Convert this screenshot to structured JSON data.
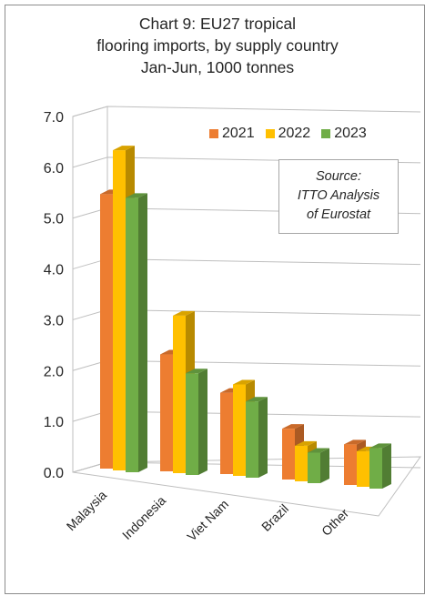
{
  "chart_data": {
    "type": "bar",
    "title_lines": [
      "Chart 9: EU27 tropical",
      "flooring imports, by supply country",
      "Jan-Jun, 1000 tonnes"
    ],
    "categories": [
      "Malaysia",
      "Indonesia",
      "Viet Nam",
      "Brazil",
      "Other"
    ],
    "series": [
      {
        "name": "2021",
        "values": [
          5.4,
          2.3,
          1.6,
          1.0,
          0.8
        ],
        "color": "#ed7d31"
      },
      {
        "name": "2022",
        "values": [
          6.3,
          3.1,
          1.8,
          0.7,
          0.7
        ],
        "color": "#ffc000"
      },
      {
        "name": "2023",
        "values": [
          5.4,
          2.0,
          1.5,
          0.6,
          0.8
        ],
        "color": "#70ad47"
      }
    ],
    "y_ticks": [
      "0.0",
      "1.0",
      "2.0",
      "3.0",
      "4.0",
      "5.0",
      "6.0",
      "7.0"
    ],
    "ylim": [
      0,
      7
    ],
    "grid": true,
    "legend_position": "top-right",
    "annotation_lines": [
      "Source:",
      "ITTO Analysis",
      "of Eurostat"
    ]
  }
}
